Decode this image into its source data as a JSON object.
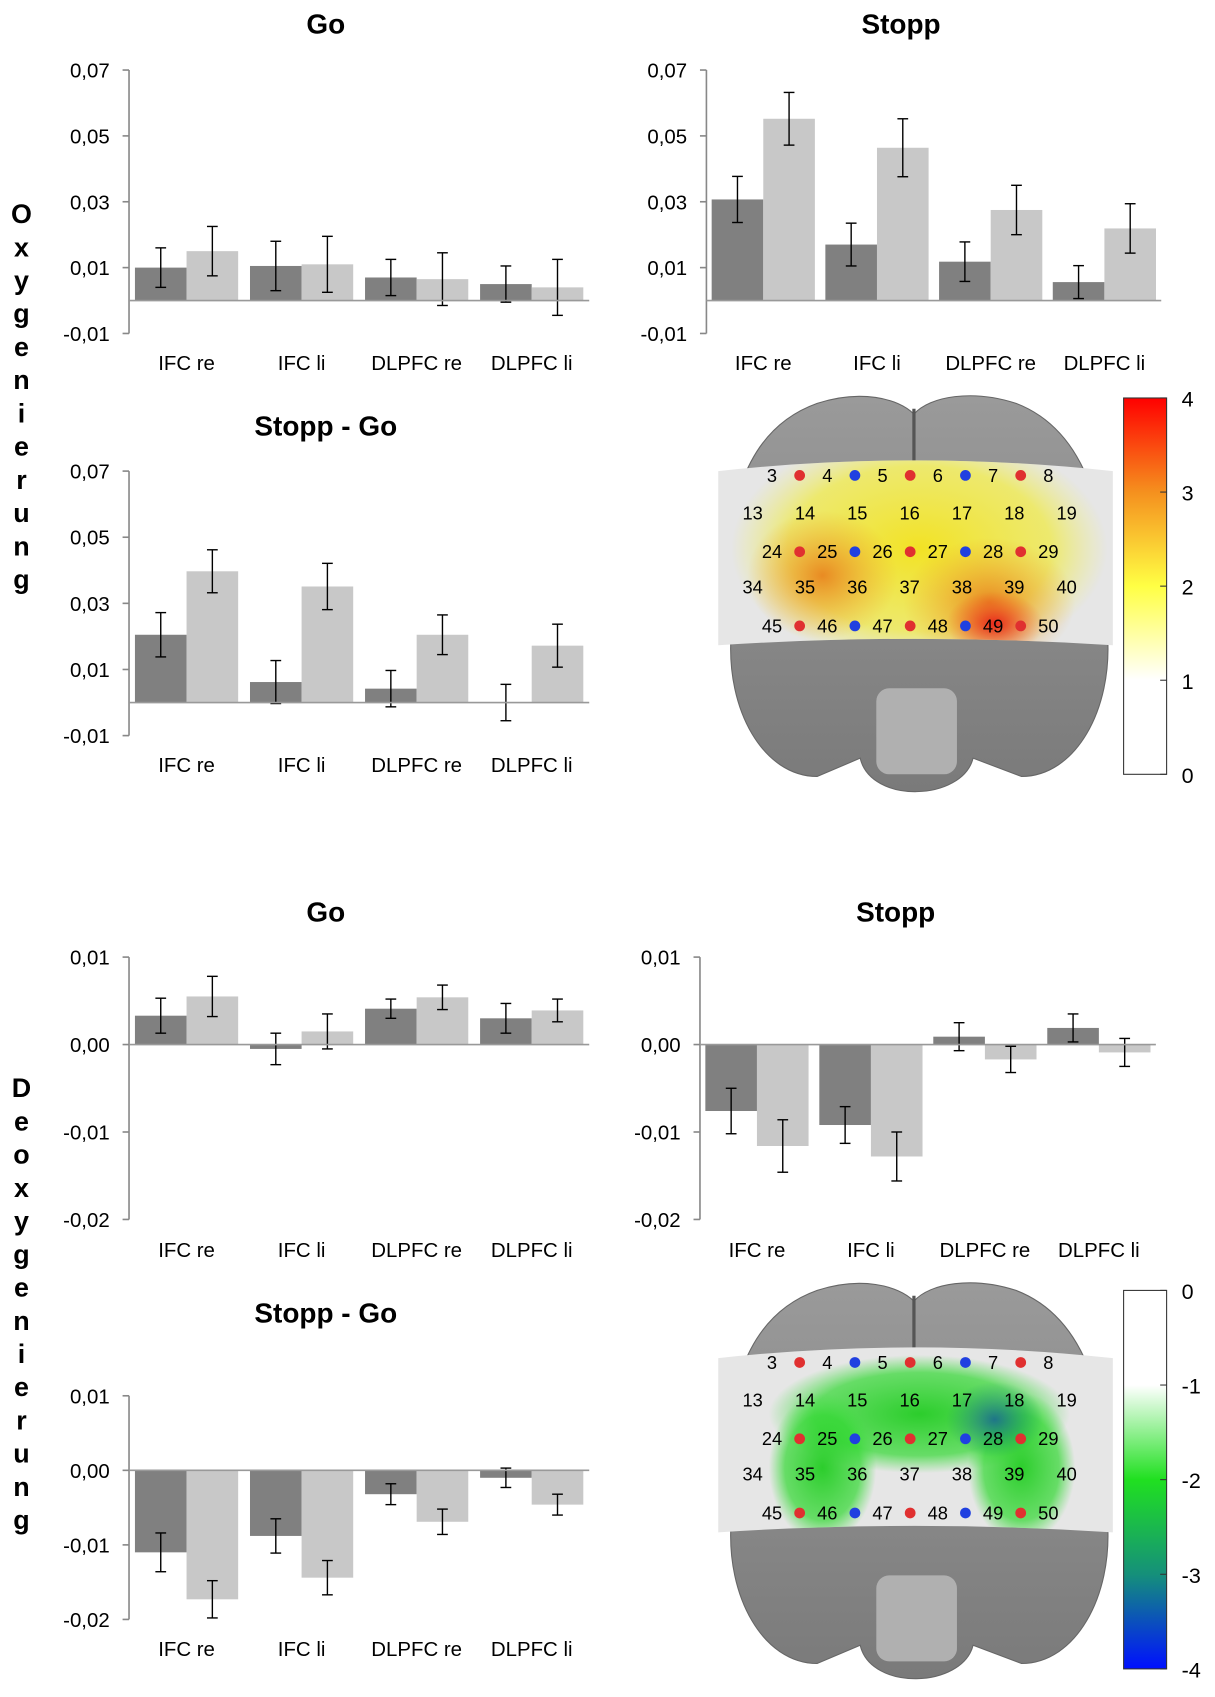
{
  "row_labels": [
    "Oxygenierung",
    "Deoxygenierung"
  ],
  "chart_data": [
    {
      "type": "bar",
      "title": "Go",
      "categories": [
        "IFC re",
        "IFC li",
        "DLPFC re",
        "DLPFC li"
      ],
      "series": [
        {
          "color": "#808080",
          "values": [
            0.01,
            0.0105,
            0.007,
            0.005
          ],
          "errors": [
            0.006,
            0.0075,
            0.0055,
            0.0055
          ]
        },
        {
          "color": "#c8c8c8",
          "values": [
            0.015,
            0.011,
            0.0065,
            0.004
          ],
          "errors": [
            0.0075,
            0.0085,
            0.008,
            0.0085
          ]
        }
      ],
      "ylim": [
        -0.01,
        0.07
      ],
      "yticks": [
        {
          "value": -0.01,
          "label": "-0,01"
        },
        {
          "value": 0.01,
          "label": "0,01"
        },
        {
          "value": 0.03,
          "label": "0,03"
        },
        {
          "value": 0.05,
          "label": "0,05"
        },
        {
          "value": 0.07,
          "label": "0,07"
        }
      ]
    },
    {
      "type": "bar",
      "title": "Stopp",
      "categories": [
        "IFC re",
        "IFC li",
        "DLPFC re",
        "DLPFC li"
      ],
      "series": [
        {
          "color": "#808080",
          "values": [
            0.0307,
            0.017,
            0.0118,
            0.0056
          ],
          "errors": [
            0.007,
            0.0065,
            0.006,
            0.005
          ]
        },
        {
          "color": "#c8c8c8",
          "values": [
            0.0552,
            0.0464,
            0.0275,
            0.0219
          ],
          "errors": [
            0.008,
            0.0088,
            0.0075,
            0.0075
          ]
        }
      ],
      "ylim": [
        -0.01,
        0.07
      ],
      "yticks": [
        {
          "value": -0.01,
          "label": "-0,01"
        },
        {
          "value": 0.01,
          "label": "0,01"
        },
        {
          "value": 0.03,
          "label": "0,03"
        },
        {
          "value": 0.05,
          "label": "0,05"
        },
        {
          "value": 0.07,
          "label": "0,07"
        }
      ]
    },
    {
      "type": "bar",
      "title": "Stopp - Go",
      "categories": [
        "IFC re",
        "IFC li",
        "DLPFC re",
        "DLPFC li"
      ],
      "series": [
        {
          "color": "#808080",
          "values": [
            0.0205,
            0.0062,
            0.0042,
            0.0
          ],
          "errors": [
            0.0067,
            0.0065,
            0.0055,
            0.0055
          ]
        },
        {
          "color": "#c8c8c8",
          "values": [
            0.0397,
            0.0351,
            0.0205,
            0.0172
          ],
          "errors": [
            0.0065,
            0.007,
            0.006,
            0.0065
          ]
        }
      ],
      "ylim": [
        -0.01,
        0.07
      ],
      "yticks": [
        {
          "value": -0.01,
          "label": "-0,01"
        },
        {
          "value": 0.01,
          "label": "0,01"
        },
        {
          "value": 0.03,
          "label": "0,03"
        },
        {
          "value": 0.05,
          "label": "0,05"
        },
        {
          "value": 0.07,
          "label": "0,07"
        }
      ]
    },
    {
      "type": "heatmap",
      "clim": [
        0,
        4
      ],
      "cticks": [
        0,
        1,
        2,
        3,
        4
      ],
      "colormap": [
        "#ffffff",
        "#ffffff",
        "#ffff44",
        "#f5901e",
        "#ff0000"
      ],
      "channel_rows": [
        [
          3,
          4,
          5,
          6,
          7,
          8
        ],
        [
          13,
          14,
          15,
          16,
          17,
          18,
          19
        ],
        [
          24,
          25,
          26,
          27,
          28,
          29
        ],
        [
          34,
          35,
          36,
          37,
          38,
          39,
          40
        ],
        [
          45,
          46,
          47,
          48,
          49,
          50
        ]
      ]
    },
    {
      "type": "bar",
      "title": "Go",
      "categories": [
        "IFC re",
        "IFC li",
        "DLPFC re",
        "DLPFC li"
      ],
      "series": [
        {
          "color": "#808080",
          "values": [
            0.0033,
            -0.0005,
            0.0041,
            0.003
          ],
          "errors": [
            0.002,
            0.0018,
            0.0011,
            0.0017
          ]
        },
        {
          "color": "#c8c8c8",
          "values": [
            0.0055,
            0.0015,
            0.0054,
            0.0039
          ],
          "errors": [
            0.0023,
            0.002,
            0.0014,
            0.0013
          ]
        }
      ],
      "ylim": [
        -0.02,
        0.01
      ],
      "yticks": [
        {
          "value": -0.02,
          "label": "-0,02"
        },
        {
          "value": -0.01,
          "label": "-0,01"
        },
        {
          "value": 0,
          "label": "0,00"
        },
        {
          "value": 0.01,
          "label": "0,01"
        }
      ]
    },
    {
      "type": "bar",
      "title": "Stopp",
      "categories": [
        "IFC re",
        "IFC li",
        "DLPFC re",
        "DLPFC li"
      ],
      "series": [
        {
          "color": "#808080",
          "values": [
            -0.0076,
            -0.0092,
            0.0009,
            0.0019
          ],
          "errors": [
            0.0026,
            0.0021,
            0.0016,
            0.0016
          ]
        },
        {
          "color": "#c8c8c8",
          "values": [
            -0.0116,
            -0.0128,
            -0.0017,
            -0.0009
          ],
          "errors": [
            0.003,
            0.0028,
            0.0015,
            0.0016
          ]
        }
      ],
      "ylim": [
        -0.02,
        0.01
      ],
      "yticks": [
        {
          "value": -0.02,
          "label": "-0,02"
        },
        {
          "value": -0.01,
          "label": "-0,01"
        },
        {
          "value": 0,
          "label": "0,00"
        },
        {
          "value": 0.01,
          "label": "0,01"
        }
      ]
    },
    {
      "type": "bar",
      "title": "Stopp - Go",
      "categories": [
        "IFC re",
        "IFC li",
        "DLPFC re",
        "DLPFC li"
      ],
      "series": [
        {
          "color": "#808080",
          "values": [
            -0.011,
            -0.0088,
            -0.0032,
            -0.001
          ],
          "errors": [
            0.0026,
            0.0023,
            0.0014,
            0.0013
          ]
        },
        {
          "color": "#c8c8c8",
          "values": [
            -0.0173,
            -0.0144,
            -0.0069,
            -0.0046
          ],
          "errors": [
            0.0025,
            0.0023,
            0.0017,
            0.0014
          ]
        }
      ],
      "ylim": [
        -0.02,
        0.01
      ],
      "yticks": [
        {
          "value": -0.02,
          "label": "-0,02"
        },
        {
          "value": -0.01,
          "label": "-0,01"
        },
        {
          "value": 0,
          "label": "0,00"
        },
        {
          "value": 0.01,
          "label": "0,01"
        }
      ]
    },
    {
      "type": "heatmap",
      "clim": [
        -4,
        0
      ],
      "cticks": [
        -4,
        -3,
        -2,
        -1,
        0
      ],
      "colormap": [
        "#0010ff",
        "#15907a",
        "#20e020",
        "#ffffff",
        "#ffffff"
      ],
      "channel_rows": [
        [
          3,
          4,
          5,
          6,
          7,
          8
        ],
        [
          13,
          14,
          15,
          16,
          17,
          18,
          19
        ],
        [
          24,
          25,
          26,
          27,
          28,
          29
        ],
        [
          34,
          35,
          36,
          37,
          38,
          39,
          40
        ],
        [
          45,
          46,
          47,
          48,
          49,
          50
        ]
      ]
    }
  ]
}
